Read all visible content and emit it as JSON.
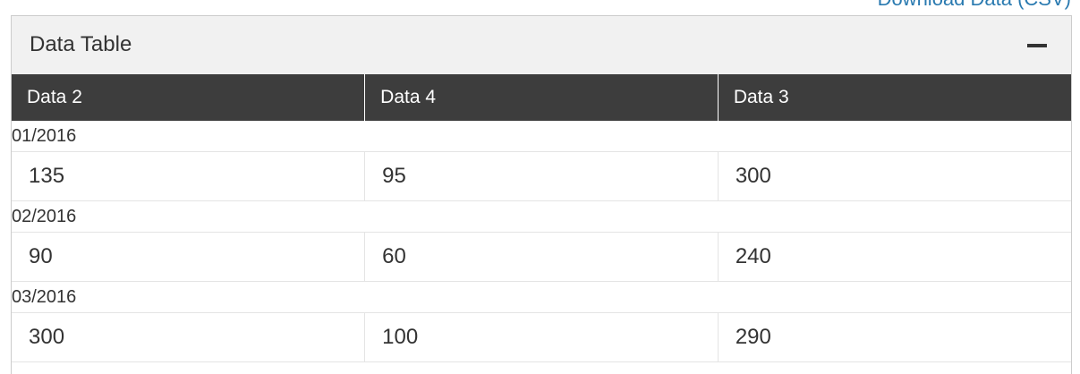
{
  "download_link": "Download Data (CSV)",
  "panel": {
    "title": "Data Table",
    "collapse_icon": "minus-icon"
  },
  "table": {
    "columns": [
      "Data 2",
      "Data 4",
      "Data 3"
    ],
    "groups": [
      {
        "date": "01/2016",
        "values": [
          "135",
          "95",
          "300"
        ]
      },
      {
        "date": "02/2016",
        "values": [
          "90",
          "60",
          "240"
        ]
      },
      {
        "date": "03/2016",
        "values": [
          "300",
          "100",
          "290"
        ]
      }
    ]
  }
}
